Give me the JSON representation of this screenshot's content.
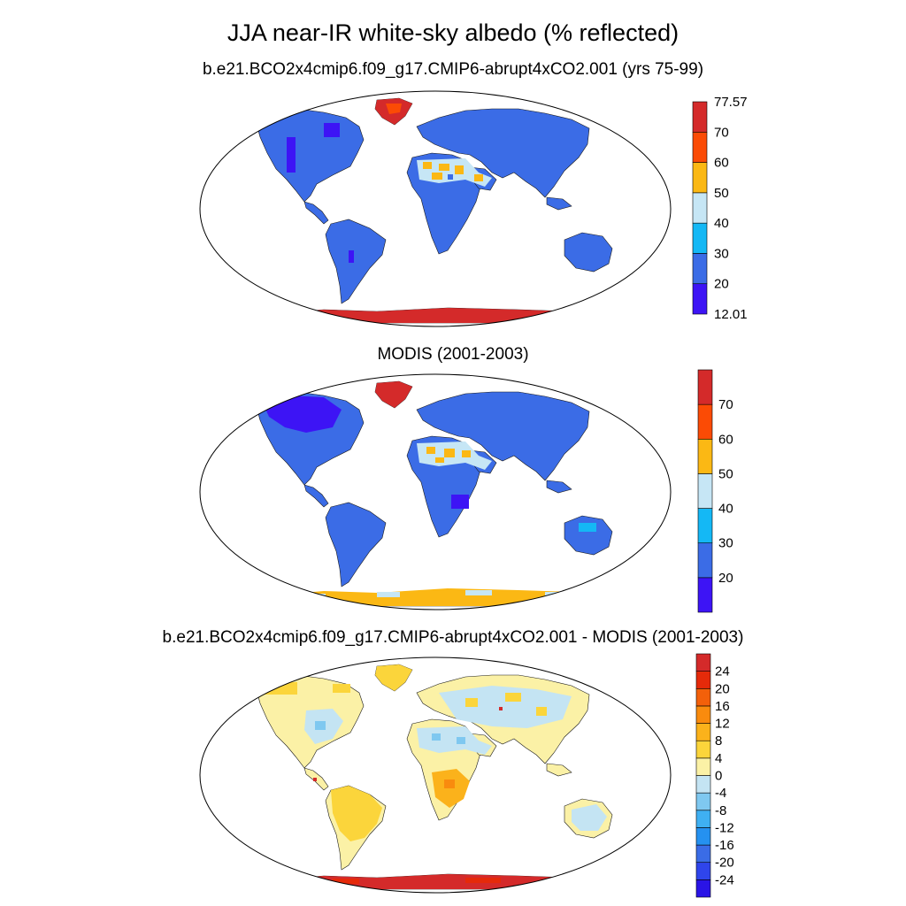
{
  "figure": {
    "title": "JJA near-IR white-sky albedo (% reflected)"
  },
  "panels": [
    {
      "subtitle": "b.e21.BCO2x4cmip6.f09_g17.CMIP6-abrupt4xCO2.001 (yrs 75-99)",
      "colorbar": {
        "colors": [
          "#3d14f5",
          "#3b6ce6",
          "#14b8f5",
          "#c6e6f5",
          "#fbb814",
          "#fb4b05",
          "#d42a2a"
        ],
        "labels": [
          "12.01",
          "20",
          "30",
          "40",
          "50",
          "60",
          "70",
          "77.57"
        ]
      }
    },
    {
      "subtitle": "MODIS (2001-2003)",
      "colorbar": {
        "colors": [
          "#3d14f5",
          "#3b6ce6",
          "#14b8f5",
          "#c6e6f5",
          "#fbb814",
          "#fb4b05",
          "#d42a2a"
        ],
        "labels": [
          "",
          "20",
          "30",
          "40",
          "50",
          "60",
          "70",
          ""
        ]
      }
    },
    {
      "subtitle": "b.e21.BCO2x4cmip6.f09_g17.CMIP6-abrupt4xCO2.001 - MODIS (2001-2003)",
      "colorbar": {
        "colors": [
          "#2a14e6",
          "#2f45eb",
          "#3a6ce6",
          "#2591f0",
          "#3fb0f2",
          "#7fc8f0",
          "#c4e4f3",
          "#fbf1a6",
          "#fbd53b",
          "#fbb21b",
          "#f98b0e",
          "#f3600a",
          "#e52a0a",
          "#d42a2a"
        ],
        "labels": [
          "-24",
          "-20",
          "-16",
          "-12",
          "-8",
          "-4",
          "0",
          "4",
          "8",
          "12",
          "16",
          "20",
          "24"
        ]
      }
    }
  ]
}
